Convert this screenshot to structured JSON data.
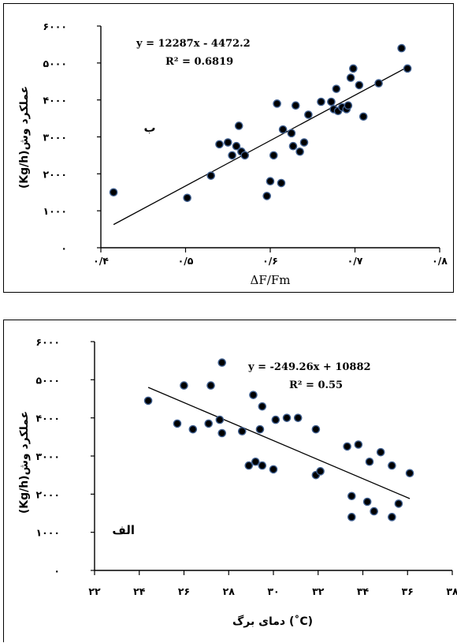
{
  "chart_data": [
    {
      "type": "scatter",
      "panel_label": "ب",
      "equation": "y = 12287x - 4472.2",
      "r2": "R² = 0.6819",
      "xlabel": "ΔF/Fm",
      "ylabel": "(Kg/h)عملکرد وش",
      "xlim": [
        0.4,
        0.8
      ],
      "ylim": [
        0,
        6000
      ],
      "x_ticks": [
        0.4,
        0.5,
        0.6,
        0.7,
        0.8
      ],
      "x_tick_labels": [
        "۰/۴",
        "۰/۵",
        "۰/۶",
        "۰/۷",
        "۰/۸"
      ],
      "y_ticks": [
        0,
        1000,
        2000,
        3000,
        4000,
        5000,
        6000
      ],
      "y_tick_labels": [
        "۰",
        "۱۰۰۰",
        "۲۰۰۰",
        "۳۰۰۰",
        "۴۰۰۰",
        "۵۰۰۰",
        "۶۰۰۰"
      ],
      "trendline": {
        "x": [
          0.415,
          0.764
        ],
        "y": [
          627,
          4915
        ]
      },
      "points": [
        {
          "x": 0.415,
          "y": 1500
        },
        {
          "x": 0.502,
          "y": 1350
        },
        {
          "x": 0.53,
          "y": 1950
        },
        {
          "x": 0.54,
          "y": 2800
        },
        {
          "x": 0.55,
          "y": 2850
        },
        {
          "x": 0.555,
          "y": 2500
        },
        {
          "x": 0.56,
          "y": 2750
        },
        {
          "x": 0.563,
          "y": 3300
        },
        {
          "x": 0.566,
          "y": 2600
        },
        {
          "x": 0.57,
          "y": 2500
        },
        {
          "x": 0.596,
          "y": 1400
        },
        {
          "x": 0.6,
          "y": 1800
        },
        {
          "x": 0.604,
          "y": 2500
        },
        {
          "x": 0.608,
          "y": 3900
        },
        {
          "x": 0.613,
          "y": 1750
        },
        {
          "x": 0.615,
          "y": 3200
        },
        {
          "x": 0.625,
          "y": 3100
        },
        {
          "x": 0.627,
          "y": 2750
        },
        {
          "x": 0.63,
          "y": 3850
        },
        {
          "x": 0.635,
          "y": 2600
        },
        {
          "x": 0.64,
          "y": 2850
        },
        {
          "x": 0.645,
          "y": 3600
        },
        {
          "x": 0.66,
          "y": 3950
        },
        {
          "x": 0.672,
          "y": 3950
        },
        {
          "x": 0.675,
          "y": 3750
        },
        {
          "x": 0.678,
          "y": 4300
        },
        {
          "x": 0.68,
          "y": 3700
        },
        {
          "x": 0.685,
          "y": 3800
        },
        {
          "x": 0.69,
          "y": 3750
        },
        {
          "x": 0.692,
          "y": 3850
        },
        {
          "x": 0.695,
          "y": 4600
        },
        {
          "x": 0.698,
          "y": 4850
        },
        {
          "x": 0.705,
          "y": 4400
        },
        {
          "x": 0.71,
          "y": 3550
        },
        {
          "x": 0.728,
          "y": 4450
        },
        {
          "x": 0.755,
          "y": 5400
        },
        {
          "x": 0.762,
          "y": 4850
        }
      ]
    },
    {
      "type": "scatter",
      "panel_label": "الف",
      "equation": "y = -249.26x + 10882",
      "r2": "R² = 0.55",
      "xlabel": "دمای برگ  (˚C)",
      "ylabel": "(Kg/h)عملکرد وش",
      "xlim": [
        22,
        38
      ],
      "ylim": [
        0,
        6000
      ],
      "x_ticks": [
        22,
        24,
        26,
        28,
        30,
        32,
        34,
        36,
        38
      ],
      "x_tick_labels": [
        "۲۲",
        "۲۴",
        "۲۶",
        "۲۸",
        "۳۰",
        "۳۲",
        "۳۴",
        "۳۶",
        "۳۸"
      ],
      "y_ticks": [
        0,
        1000,
        2000,
        3000,
        4000,
        5000,
        6000
      ],
      "y_tick_labels": [
        "۰",
        "۱۰۰۰",
        "۲۰۰۰",
        "۳۰۰۰",
        "۴۰۰۰",
        "۵۰۰۰",
        "۶۰۰۰"
      ],
      "trendline": {
        "x": [
          24.4,
          36.1
        ],
        "y": [
          4800,
          1883
        ]
      },
      "points": [
        {
          "x": 24.4,
          "y": 4450
        },
        {
          "x": 25.7,
          "y": 3850
        },
        {
          "x": 26.0,
          "y": 4850
        },
        {
          "x": 26.4,
          "y": 3700
        },
        {
          "x": 27.1,
          "y": 3850
        },
        {
          "x": 27.2,
          "y": 4850
        },
        {
          "x": 27.6,
          "y": 3950
        },
        {
          "x": 27.7,
          "y": 3600
        },
        {
          "x": 27.7,
          "y": 5450
        },
        {
          "x": 28.6,
          "y": 3650
        },
        {
          "x": 28.9,
          "y": 2750
        },
        {
          "x": 29.1,
          "y": 4600
        },
        {
          "x": 29.2,
          "y": 2850
        },
        {
          "x": 29.4,
          "y": 3700
        },
        {
          "x": 29.5,
          "y": 2750
        },
        {
          "x": 29.5,
          "y": 4300
        },
        {
          "x": 30.0,
          "y": 2650
        },
        {
          "x": 30.1,
          "y": 3950
        },
        {
          "x": 30.6,
          "y": 4000
        },
        {
          "x": 31.1,
          "y": 4000
        },
        {
          "x": 31.9,
          "y": 2500
        },
        {
          "x": 31.9,
          "y": 3700
        },
        {
          "x": 32.1,
          "y": 2600
        },
        {
          "x": 33.3,
          "y": 3250
        },
        {
          "x": 33.5,
          "y": 1950
        },
        {
          "x": 33.5,
          "y": 1400
        },
        {
          "x": 33.8,
          "y": 3300
        },
        {
          "x": 34.2,
          "y": 1800
        },
        {
          "x": 34.3,
          "y": 2850
        },
        {
          "x": 34.5,
          "y": 1550
        },
        {
          "x": 34.8,
          "y": 3100
        },
        {
          "x": 35.3,
          "y": 1400
        },
        {
          "x": 35.3,
          "y": 2750
        },
        {
          "x": 35.6,
          "y": 1750
        },
        {
          "x": 36.1,
          "y": 2550
        }
      ]
    }
  ]
}
